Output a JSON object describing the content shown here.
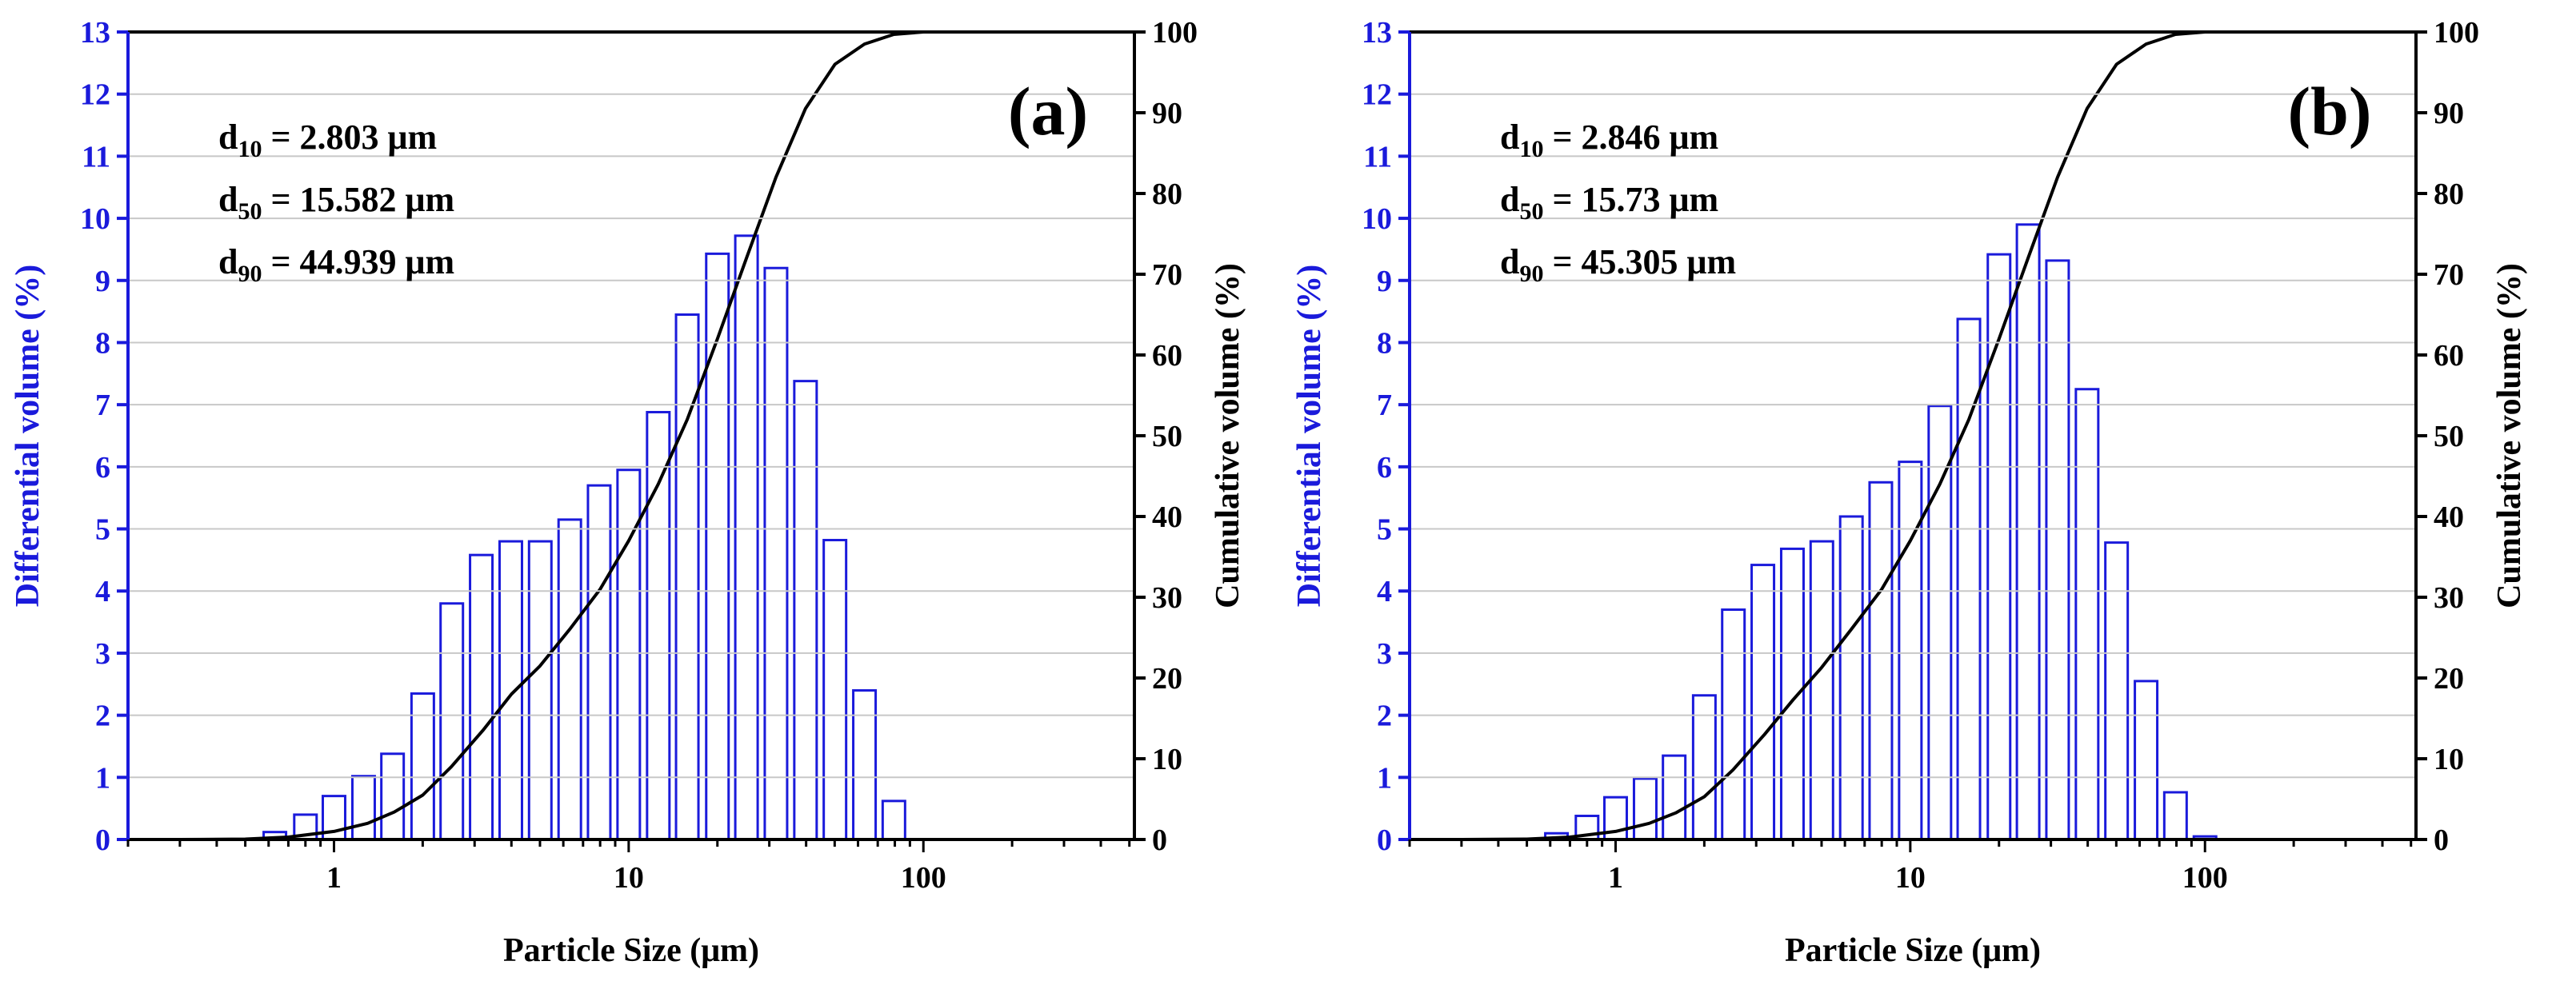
{
  "chart_data": [
    {
      "type": "bar",
      "panel_label": "(a)",
      "xlabel": "Particle Size (μm)",
      "ylabel_left": "Differential volume (%)",
      "ylabel_right": "Cumulative volume (%)",
      "xscale": "log",
      "xlim": [
        0.2,
        520
      ],
      "ylim_left": [
        0,
        13
      ],
      "ylim_right": [
        0,
        100
      ],
      "x_ticks": [
        {
          "value": 1,
          "label": "1"
        },
        {
          "value": 10,
          "label": "10"
        },
        {
          "value": 100,
          "label": "100"
        }
      ],
      "y_left_ticks": [
        "0",
        "1",
        "2",
        "3",
        "4",
        "5",
        "6",
        "7",
        "8",
        "9",
        "10",
        "11",
        "12",
        "13"
      ],
      "y_right_ticks": [
        "0",
        "10",
        "20",
        "30",
        "40",
        "50",
        "60",
        "70",
        "80",
        "90",
        "100"
      ],
      "colors": {
        "bars": "#1a1adb",
        "curve": "#000000",
        "left_axis_text": "#1a1adb"
      },
      "annotations": {
        "d10": {
          "sym": "d",
          "sub": "10",
          "text": " = 2.803 μm"
        },
        "d50": {
          "sym": "d",
          "sub": "50",
          "text": " =  15.582 μm"
        },
        "d90": {
          "sym": "d",
          "sub": "90",
          "text": " = 44.939 μm"
        }
      },
      "series": [
        {
          "name": "Differential volume (%)",
          "axis": "left",
          "kind": "bar",
          "x": [
            0.63,
            0.8,
            1.0,
            1.26,
            1.58,
            2.0,
            2.51,
            3.16,
            3.98,
            5.01,
            6.31,
            7.94,
            10.0,
            12.6,
            15.8,
            20.0,
            25.1,
            31.6,
            39.8,
            50.1,
            63.1,
            79.4,
            100.0
          ],
          "values": [
            0.12,
            0.4,
            0.7,
            1.02,
            1.38,
            2.35,
            3.8,
            4.58,
            4.8,
            4.8,
            5.15,
            5.7,
            5.95,
            6.88,
            8.45,
            9.43,
            9.72,
            9.2,
            7.38,
            4.82,
            2.4,
            0.62,
            0.0
          ]
        },
        {
          "name": "Cumulative volume (%)",
          "axis": "right",
          "kind": "line",
          "x": [
            0.3,
            0.5,
            0.7,
            1.0,
            1.3,
            1.6,
            2.0,
            2.5,
            3.2,
            4.0,
            5.0,
            6.3,
            8.0,
            10.0,
            12.6,
            15.8,
            20.0,
            25.1,
            31.6,
            39.8,
            50.1,
            63.1,
            79.4,
            100.0,
            200.0,
            520.0
          ],
          "values": [
            0.0,
            0.05,
            0.3,
            1.0,
            2.0,
            3.4,
            5.5,
            9.0,
            13.5,
            18.0,
            21.5,
            26.0,
            31.0,
            37.0,
            44.0,
            52.0,
            62.0,
            72.0,
            82.0,
            90.5,
            96.0,
            98.5,
            99.7,
            100.0,
            100.0,
            100.0
          ]
        }
      ]
    },
    {
      "type": "bar",
      "panel_label": "(b)",
      "xlabel": "Particle Size (μm)",
      "ylabel_left": "Differential volume (%)",
      "ylabel_right": "Cumulative volume (%)",
      "xscale": "log",
      "xlim": [
        0.2,
        520
      ],
      "ylim_left": [
        0,
        13
      ],
      "ylim_right": [
        0,
        100
      ],
      "x_ticks": [
        {
          "value": 1,
          "label": "1"
        },
        {
          "value": 10,
          "label": "10"
        },
        {
          "value": 100,
          "label": "100"
        }
      ],
      "y_left_ticks": [
        "0",
        "1",
        "2",
        "3",
        "4",
        "5",
        "6",
        "7",
        "8",
        "9",
        "10",
        "11",
        "12",
        "13"
      ],
      "y_right_ticks": [
        "0",
        "10",
        "20",
        "30",
        "40",
        "50",
        "60",
        "70",
        "80",
        "90",
        "100"
      ],
      "colors": {
        "bars": "#1a1adb",
        "curve": "#000000",
        "left_axis_text": "#1a1adb"
      },
      "annotations": {
        "d10": {
          "sym": "d",
          "sub": "10",
          "text": " = 2.846 μm"
        },
        "d50": {
          "sym": "d",
          "sub": "50",
          "text": " = 15.73 μm"
        },
        "d90": {
          "sym": "d",
          "sub": "90",
          "text": " = 45.305 μm"
        }
      },
      "series": [
        {
          "name": "Differential volume (%)",
          "axis": "left",
          "kind": "bar",
          "x": [
            0.63,
            0.8,
            1.0,
            1.26,
            1.58,
            2.0,
            2.51,
            3.16,
            3.98,
            5.01,
            6.31,
            7.94,
            10.0,
            12.6,
            15.8,
            20.0,
            25.1,
            31.6,
            39.8,
            50.1,
            63.1,
            79.4,
            100.0,
            126.0
          ],
          "values": [
            0.1,
            0.38,
            0.68,
            0.98,
            1.35,
            2.32,
            3.7,
            4.42,
            4.68,
            4.8,
            5.2,
            5.75,
            6.08,
            6.98,
            8.38,
            9.42,
            9.9,
            9.32,
            7.25,
            4.78,
            2.55,
            0.76,
            0.05,
            0.0
          ]
        },
        {
          "name": "Cumulative volume (%)",
          "axis": "right",
          "kind": "line",
          "x": [
            0.3,
            0.5,
            0.7,
            1.0,
            1.3,
            1.6,
            2.0,
            2.5,
            3.2,
            4.0,
            5.0,
            6.3,
            8.0,
            10.0,
            12.6,
            15.8,
            20.0,
            25.1,
            31.6,
            39.8,
            50.1,
            63.1,
            79.4,
            100.0,
            200.0,
            520.0
          ],
          "values": [
            0.0,
            0.05,
            0.3,
            1.0,
            2.0,
            3.3,
            5.3,
            8.6,
            13.0,
            17.3,
            21.3,
            26.0,
            31.0,
            37.0,
            44.0,
            52.0,
            62.0,
            72.0,
            82.0,
            90.5,
            96.0,
            98.5,
            99.7,
            100.0,
            100.0,
            100.0
          ]
        }
      ]
    }
  ]
}
